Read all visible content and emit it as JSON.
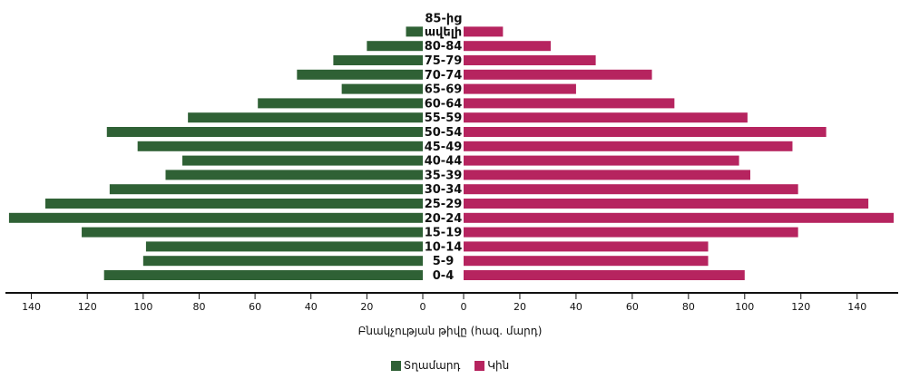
{
  "chart_data": {
    "type": "bar",
    "orientation": "horizontal-pyramid",
    "categories": [
      "0-4",
      "5-9",
      "10-14",
      "15-19",
      "20-24",
      "25-29",
      "30-34",
      "35-39",
      "40-44",
      "45-49",
      "50-54",
      "55-59",
      "60-64",
      "65-69",
      "70-74",
      "75-79",
      "80-84",
      "85-ից ավելի"
    ],
    "category_label_lines": [
      [
        "0-4"
      ],
      [
        "5-9"
      ],
      [
        "10-14"
      ],
      [
        "15-19"
      ],
      [
        "20-24"
      ],
      [
        "25-29"
      ],
      [
        "30-34"
      ],
      [
        "35-39"
      ],
      [
        "40-44"
      ],
      [
        "45-49"
      ],
      [
        "50-54"
      ],
      [
        "55-59"
      ],
      [
        "60-64"
      ],
      [
        "65-69"
      ],
      [
        "70-74"
      ],
      [
        "75-79"
      ],
      [
        "80-84"
      ],
      [
        "85-ից",
        "ավելի"
      ]
    ],
    "series": [
      {
        "name": "Տղամարդ",
        "side": "left",
        "color": "#2f6135",
        "values": [
          114,
          100,
          99,
          122,
          148,
          135,
          112,
          92,
          86,
          102,
          113,
          84,
          59,
          29,
          45,
          32,
          20,
          6
        ]
      },
      {
        "name": "Կին",
        "side": "right",
        "color": "#b6245f",
        "values": [
          100,
          87,
          87,
          119,
          153,
          144,
          119,
          102,
          98,
          117,
          129,
          101,
          75,
          40,
          67,
          47,
          31,
          14
        ]
      }
    ],
    "xlabel": "Բնակչության թիվը (հազ. մարդ)",
    "xlim": [
      0,
      150
    ],
    "xticks": [
      0,
      20,
      40,
      60,
      80,
      100,
      120,
      140
    ],
    "legend_position": "bottom-center",
    "grid": false
  }
}
